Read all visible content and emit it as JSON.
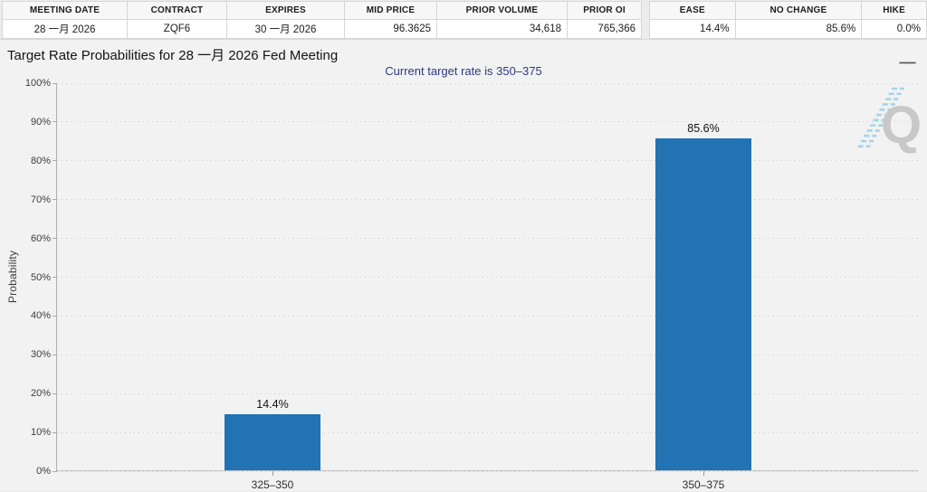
{
  "topbar": {
    "contract_table": {
      "columns": [
        {
          "label": "MEETING DATE",
          "value": "28 一月 2026",
          "align": "center"
        },
        {
          "label": "CONTRACT",
          "value": "ZQF6",
          "align": "center"
        },
        {
          "label": "EXPIRES",
          "value": "30 一月 2026",
          "align": "center"
        },
        {
          "label": "MID PRICE",
          "value": "96.3625",
          "align": "right"
        },
        {
          "label": "PRIOR VOLUME",
          "value": "34,618",
          "align": "right"
        },
        {
          "label": "PRIOR OI",
          "value": "765,366",
          "align": "right"
        }
      ]
    },
    "rate_move_table": {
      "columns": [
        {
          "label": "EASE",
          "value": "14.4%",
          "align": "right"
        },
        {
          "label": "NO CHANGE",
          "value": "85.6%",
          "align": "right"
        },
        {
          "label": "HIKE",
          "value": "0.0%",
          "align": "right"
        }
      ]
    }
  },
  "chart": {
    "title": "Target Rate Probabilities for 28 一月 2026 Fed Meeting",
    "subtitle": "Current target rate is 350–375",
    "subtitle_color": "#2e3a80",
    "menu_icon": "hamburger-menu-icon",
    "watermark_letter": "Q",
    "watermark_color": "#c6c6c6",
    "watermark_stripe_color": "#9fd3e8"
  },
  "chart_data": {
    "type": "bar",
    "title": "Target Rate Probabilities for 28 一月 2026 Fed Meeting",
    "subtitle": "Current target rate is 350–375",
    "categories": [
      "325–350",
      "350–375"
    ],
    "values": [
      14.4,
      85.6
    ],
    "value_labels": [
      "14.4%",
      "85.6%"
    ],
    "xlabel": "",
    "ylabel": "Probability",
    "ylim": [
      0,
      100
    ],
    "ytick_step": 10,
    "ytick_suffix": "%",
    "grid": "dotted-horizontal",
    "legend": "none",
    "bar_color": "#2173b4"
  }
}
